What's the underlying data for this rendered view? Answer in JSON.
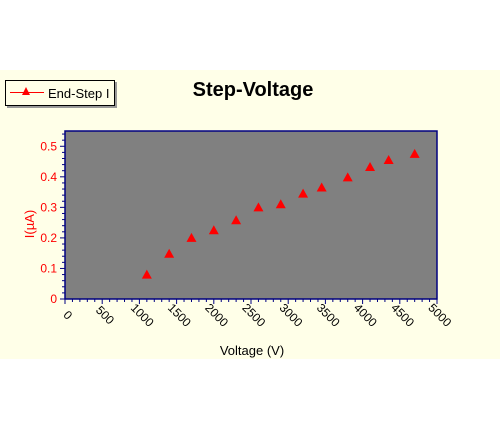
{
  "chart_data": {
    "type": "scatter",
    "title": "Step-Voltage",
    "xlabel": "Voltage (V)",
    "ylabel": "I(µA)",
    "xlim": [
      0,
      5000
    ],
    "ylim": [
      0,
      0.55
    ],
    "xticks": [
      0,
      500,
      1000,
      1500,
      2000,
      2500,
      3000,
      3500,
      4000,
      4500,
      5000
    ],
    "yticks": [
      0,
      0.1,
      0.2,
      0.3,
      0.4,
      0.5
    ],
    "ytick_labels": [
      "0",
      "0.1",
      "0.2",
      "0.3",
      "0.4",
      "0.5"
    ],
    "legend": "top-left",
    "grid": false,
    "series": [
      {
        "name": "End-Step I",
        "color": "#ff0000",
        "marker": "triangle",
        "x": [
          1100,
          1400,
          1700,
          2000,
          2300,
          2600,
          2900,
          3200,
          3450,
          3800,
          4100,
          4350,
          4700
        ],
        "y": [
          0.08,
          0.148,
          0.2,
          0.225,
          0.258,
          0.3,
          0.31,
          0.345,
          0.365,
          0.398,
          0.432,
          0.455,
          0.475
        ]
      }
    ],
    "colors": {
      "plot_background": "#808080",
      "page_background": "#ffffe8",
      "axis": "#000080",
      "ylabel": "#ff0000"
    }
  }
}
